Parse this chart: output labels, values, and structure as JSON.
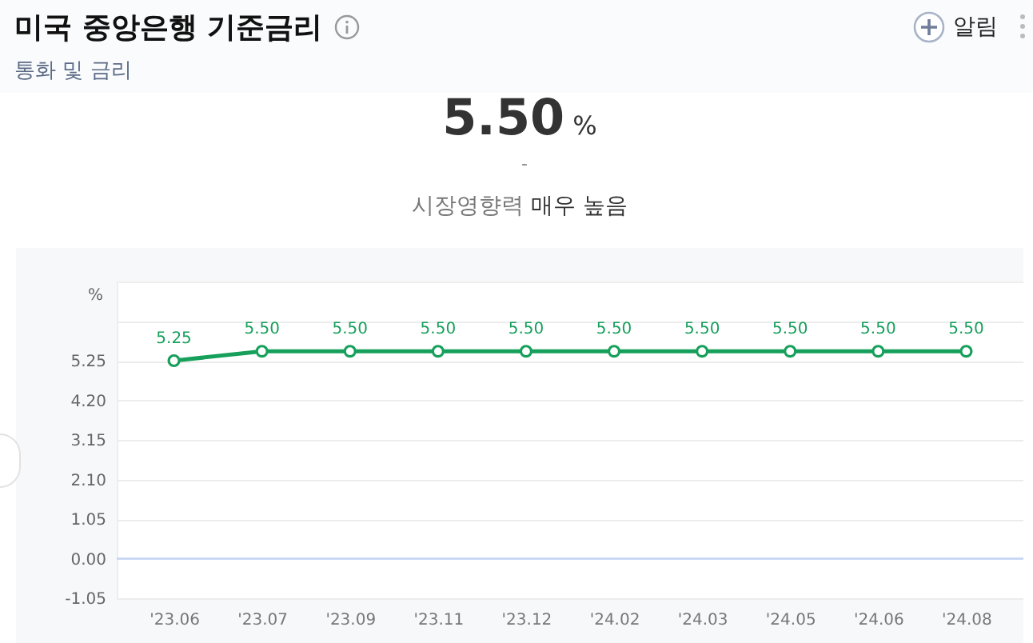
{
  "chart_data": {
    "type": "line",
    "title": "미국 중앙은행 기준금리",
    "subtitle": "통화 및 금리",
    "ylabel": "%",
    "annotations": [
      "5.50 %",
      "-",
      "시장영향력 매우 높음",
      "알림"
    ],
    "categories": [
      "'23.06",
      "'23.07",
      "'23.09",
      "'23.11",
      "'23.12",
      "'24.02",
      "'24.03",
      "'24.05",
      "'24.06",
      "'24.08"
    ],
    "series": [
      {
        "color": "#16a05b",
        "values": [
          5.25,
          5.5,
          5.5,
          5.5,
          5.5,
          5.5,
          5.5,
          5.5,
          5.5,
          5.5
        ],
        "value_labels": [
          "5.25",
          "5.50",
          "5.50",
          "5.50",
          "5.50",
          "5.50",
          "5.50",
          "5.50",
          "5.50",
          "5.50"
        ]
      }
    ],
    "ylim": [
      -1.05,
      7.35
    ],
    "yticks": [
      -1.05,
      {
        "value": 0,
        "label": "0.00"
      },
      1.05,
      {
        "value": 2.1,
        "label": "2.10"
      },
      3.15,
      {
        "value": 4.2,
        "label": "4.20"
      },
      5.25,
      {
        "value": 6.3,
        "label": null
      }
    ],
    "ref_lines": [
      {
        "axis": "y",
        "value": 0,
        "color": "#c3d4f7"
      }
    ],
    "grid": "y",
    "marker": "circle",
    "line_style": "solid"
  }
}
